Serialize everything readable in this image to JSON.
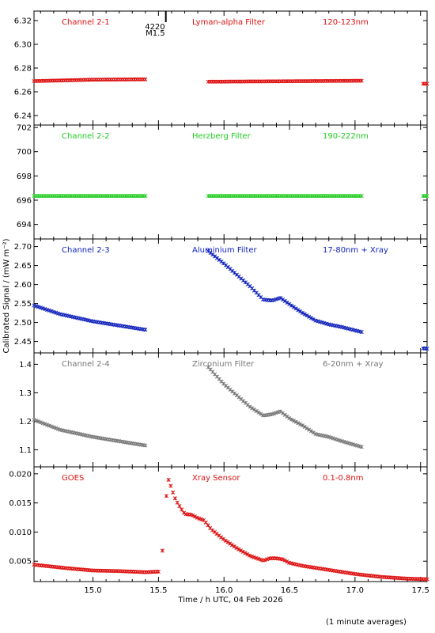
{
  "chart_data": {
    "type": "scatter",
    "xlabel": "Time / h UTC, 04 Feb 2026",
    "ylabel": "Calibrated Signal / (mW m⁻²)",
    "xlim": [
      14.55,
      17.55
    ],
    "xticks": [
      "15.0",
      "15.5",
      "16.0",
      "16.5",
      "17.0",
      "17.5"
    ],
    "footnote": "(1 minute averages)",
    "flare_marker": {
      "x": 15.55,
      "labels": [
        "4220",
        "M1.5"
      ]
    },
    "panels": [
      {
        "name": "Channel 2-1",
        "labels": [
          "Channel 2-1",
          "Lyman-alpha Filter",
          "120-123nm"
        ],
        "color": "#dd1111",
        "ylim": [
          6.232,
          6.328
        ],
        "yticks": [
          "6.24",
          "6.26",
          "6.28",
          "6.30",
          "6.32"
        ],
        "segments": [
          {
            "x": [
              14.55,
              15.0,
              15.4
            ],
            "y": [
              6.269,
              6.2702,
              6.2705
            ]
          },
          {
            "x": [
              15.88,
              16.4,
              17.05
            ],
            "y": [
              6.2685,
              6.2688,
              6.2693
            ]
          },
          {
            "x": [
              17.52,
              17.55
            ],
            "y": [
              6.2668,
              6.2668
            ]
          }
        ]
      },
      {
        "name": "Channel 2-2",
        "labels": [
          "Channel 2-2",
          "Herzberg Filter",
          "190-222nm"
        ],
        "color": "#22cc22",
        "ylim": [
          692.8,
          702.2
        ],
        "yticks": [
          "694",
          "696",
          "698",
          "700",
          "702"
        ],
        "segments": [
          {
            "x": [
              14.55,
              15.4
            ],
            "y": [
              696.35,
              696.35
            ]
          },
          {
            "x": [
              15.88,
              17.05
            ],
            "y": [
              696.35,
              696.35
            ]
          },
          {
            "x": [
              17.52,
              17.55
            ],
            "y": [
              696.35,
              696.35
            ]
          }
        ]
      },
      {
        "name": "Channel 2-3",
        "labels": [
          "Channel 2-3",
          "Aluminium Filter",
          "17-80nm + Xray"
        ],
        "color": "#1122bb",
        "ylim": [
          2.42,
          2.72
        ],
        "yticks": [
          "2.45",
          "2.50",
          "2.55",
          "2.60",
          "2.65",
          "2.70"
        ],
        "segments": [
          {
            "x": [
              14.55,
              14.75,
              15.0,
              15.2,
              15.4
            ],
            "y": [
              2.545,
              2.522,
              2.503,
              2.492,
              2.481
            ]
          },
          {
            "x": [
              15.88,
              16.0,
              16.1,
              16.2,
              16.3,
              16.37,
              16.43,
              16.5,
              16.6,
              16.7,
              16.8,
              16.9,
              17.05
            ],
            "y": [
              2.688,
              2.655,
              2.625,
              2.595,
              2.56,
              2.558,
              2.565,
              2.548,
              2.525,
              2.505,
              2.495,
              2.488,
              2.475
            ]
          },
          {
            "x": [
              17.52,
              17.55
            ],
            "y": [
              2.432,
              2.431
            ]
          }
        ]
      },
      {
        "name": "Channel 2-4",
        "labels": [
          "Channel 2-4",
          "Zirconium Filter",
          "6-20nm + Xray"
        ],
        "color": "#777777",
        "ylim": [
          1.04,
          1.44
        ],
        "yticks": [
          "1.1",
          "1.2",
          "1.3",
          "1.4"
        ],
        "segments": [
          {
            "x": [
              14.55,
              14.75,
              15.0,
              15.2,
              15.4
            ],
            "y": [
              1.205,
              1.17,
              1.145,
              1.13,
              1.115
            ]
          },
          {
            "x": [
              15.88,
              16.0,
              16.1,
              16.2,
              16.3,
              16.37,
              16.43,
              16.5,
              16.6,
              16.7,
              16.8,
              16.9,
              17.05
            ],
            "y": [
              1.39,
              1.33,
              1.29,
              1.25,
              1.22,
              1.225,
              1.235,
              1.21,
              1.185,
              1.155,
              1.145,
              1.13,
              1.11
            ]
          }
        ]
      },
      {
        "name": "GOES",
        "labels": [
          "GOES",
          "Xray Sensor",
          "0.1-0.8nm"
        ],
        "color": "#dd1111",
        "ylim": [
          0.0015,
          0.0212
        ],
        "yticks": [
          "0.005",
          "0.010",
          "0.015",
          "0.020"
        ],
        "segments": [
          {
            "x": [
              14.55,
              14.8,
              15.0,
              15.2,
              15.4,
              15.5
            ],
            "y": [
              0.0044,
              0.0038,
              0.0034,
              0.0033,
              0.0031,
              0.0032
            ]
          },
          {
            "x": [
              15.53
            ],
            "y": [
              0.0068
            ]
          },
          {
            "x": [
              15.56,
              15.57,
              15.58,
              15.6,
              15.62,
              15.64,
              15.67,
              15.7,
              15.75,
              15.8,
              15.85,
              15.9,
              16.0,
              16.1,
              16.2,
              16.3,
              16.35,
              16.4,
              16.45,
              16.5,
              16.6,
              16.8,
              17.0,
              17.2,
              17.4,
              17.55
            ],
            "y": [
              0.0162,
              0.0193,
              0.0188,
              0.0175,
              0.0161,
              0.0152,
              0.0141,
              0.0131,
              0.013,
              0.0124,
              0.012,
              0.0105,
              0.0087,
              0.0072,
              0.0059,
              0.0051,
              0.0055,
              0.0055,
              0.0053,
              0.0047,
              0.0042,
              0.0035,
              0.0028,
              0.0023,
              0.002,
              0.0019
            ]
          }
        ]
      }
    ]
  }
}
